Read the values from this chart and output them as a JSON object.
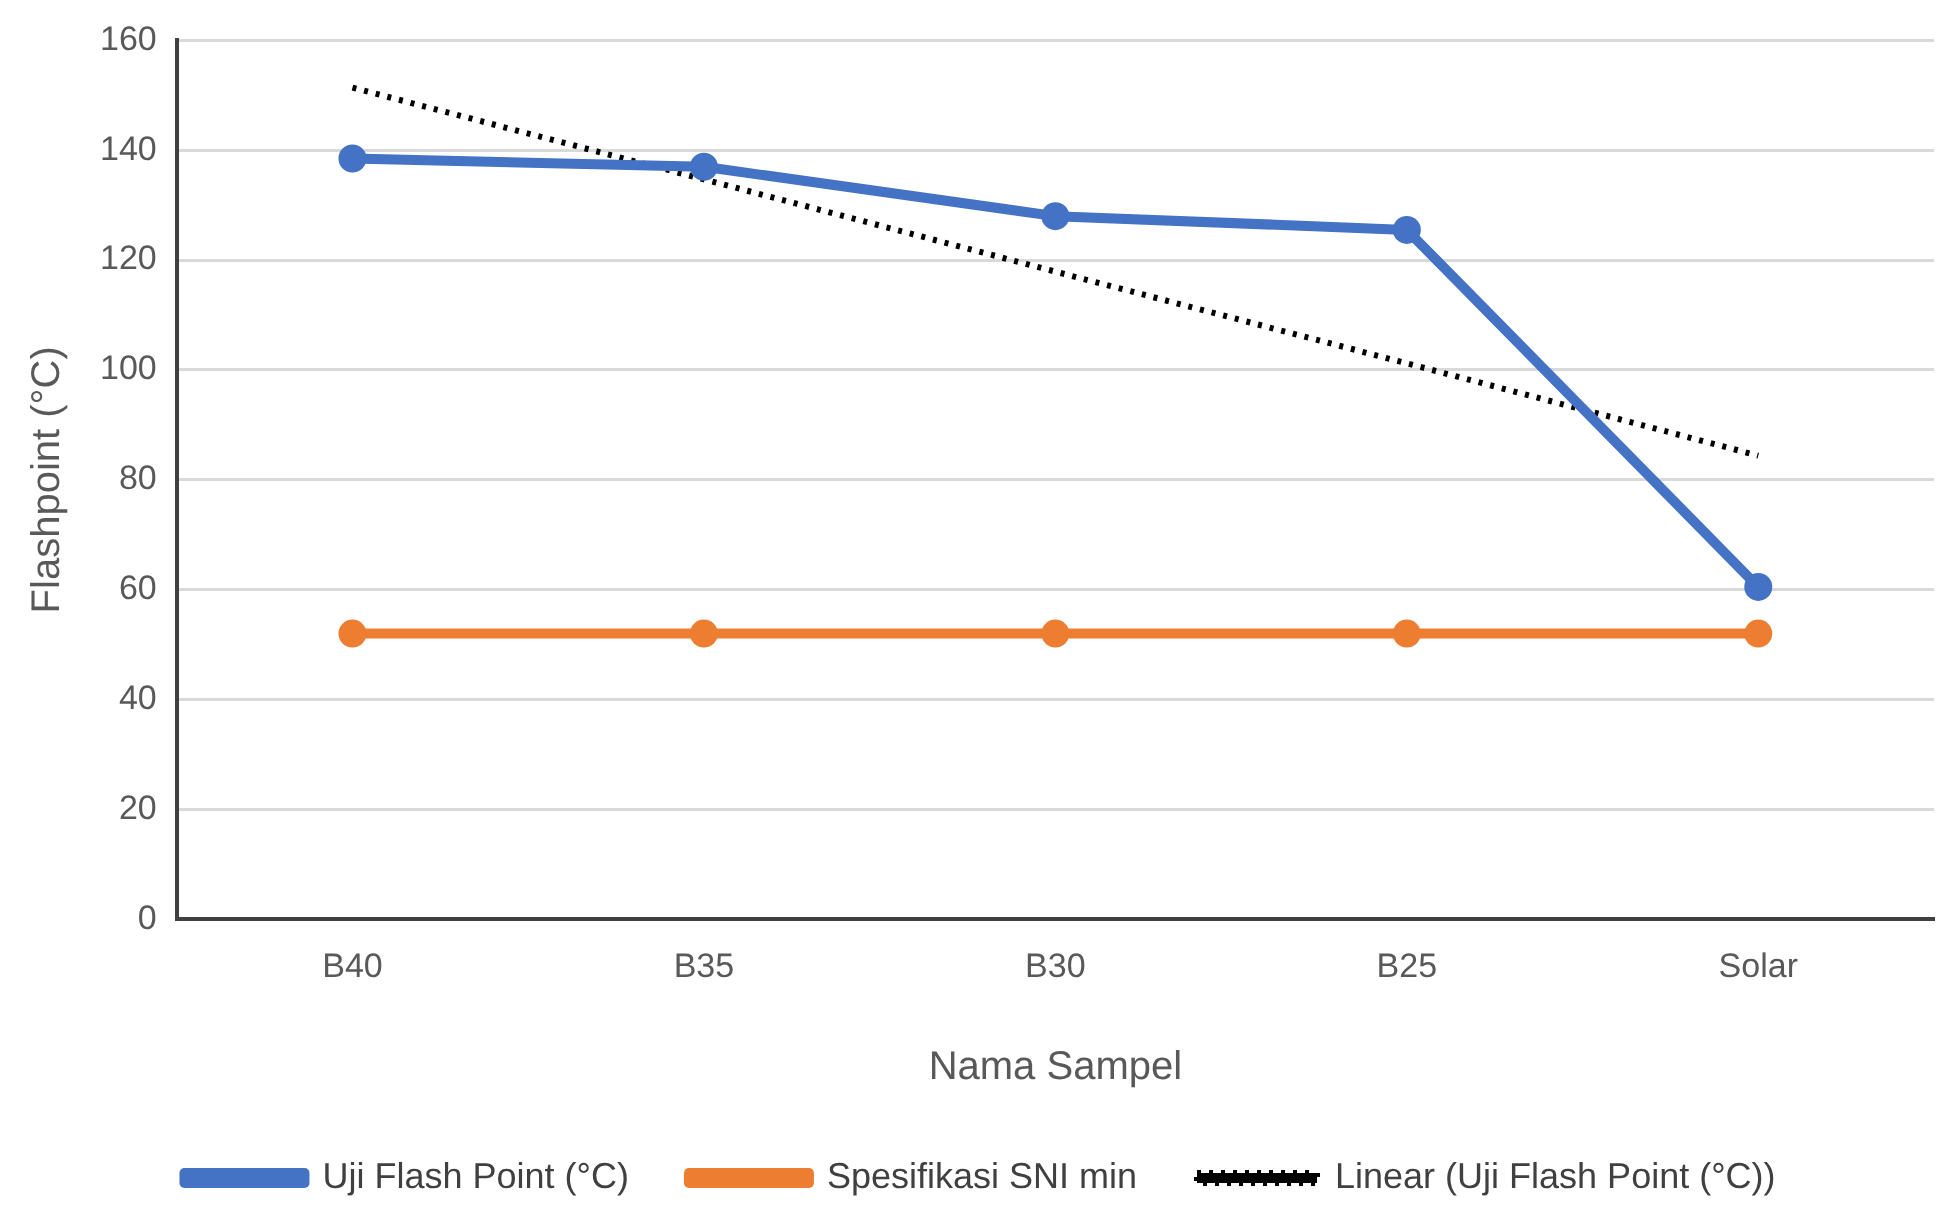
{
  "chart_data": {
    "type": "line",
    "xlabel": "Nama Sampel",
    "ylabel": "Flashpoint (°C)",
    "categories": [
      "B40",
      "B35",
      "B30",
      "B25",
      "Solar"
    ],
    "series": [
      {
        "name": "Uji Flash Point (°C)",
        "color": "#4472c4",
        "values": [
          138.5,
          137,
          128,
          125.5,
          60.5
        ],
        "marker": "circle",
        "line_style": "solid"
      },
      {
        "name": "Spesifikasi SNI min",
        "color": "#ed7d31",
        "values": [
          52,
          52,
          52,
          52,
          52
        ],
        "marker": "circle",
        "line_style": "solid"
      },
      {
        "name": "Linear (Uji Flash Point (°C))",
        "color": "#000000",
        "values": [
          151.4,
          134.7,
          117.9,
          101.2,
          84.4
        ],
        "marker": "none",
        "line_style": "dotted"
      }
    ],
    "ylim": [
      0,
      160
    ],
    "yticks": [
      0,
      20,
      40,
      60,
      80,
      100,
      120,
      140,
      160
    ],
    "grid": "y",
    "legend": "bottom"
  }
}
